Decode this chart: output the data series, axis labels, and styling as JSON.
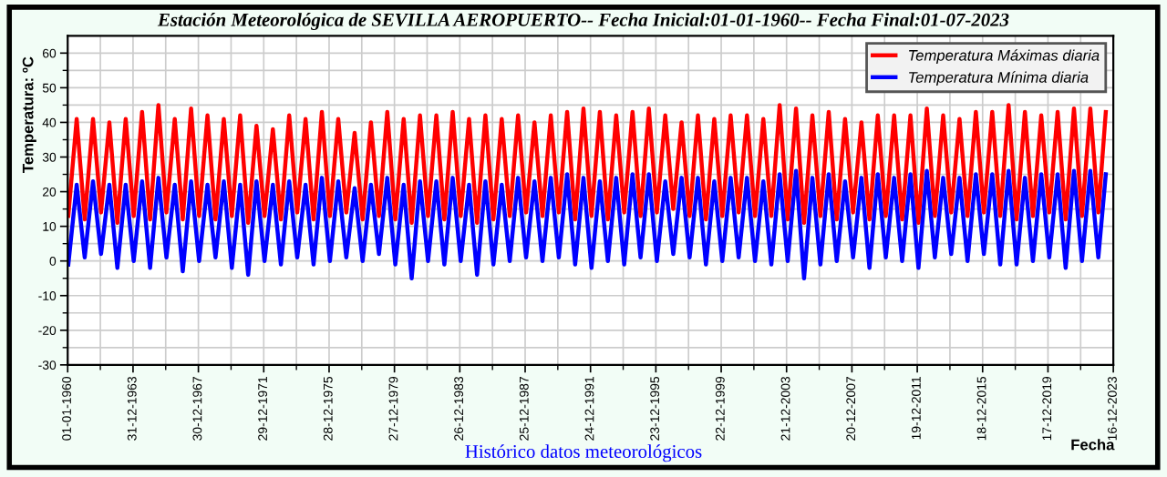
{
  "chart_data": {
    "type": "line",
    "title": "Estación Meteorológica de SEVILLA AEROPUERTO-- Fecha Inicial:01-01-1960-- Fecha Final:01-07-2023",
    "xlabel": "Fecha",
    "ylabel": "Temperatura: ºC",
    "annotations": [
      "Histórico datos meteorológicos"
    ],
    "x": [
      "1960-01-15",
      "1960-07-20",
      "1961-01-15",
      "1961-07-20",
      "1962-01-15",
      "1962-07-20",
      "1963-01-15",
      "1963-07-20",
      "1964-01-15",
      "1964-07-20",
      "1965-01-15",
      "1965-07-20",
      "1966-01-15",
      "1966-07-20",
      "1967-01-15",
      "1967-07-20",
      "1968-01-15",
      "1968-07-20",
      "1969-01-15",
      "1969-07-20",
      "1970-01-15",
      "1970-07-20",
      "1971-01-15",
      "1971-07-20",
      "1972-01-15",
      "1972-07-20",
      "1973-01-15",
      "1973-07-20",
      "1974-01-15",
      "1974-07-20",
      "1975-01-15",
      "1975-07-20",
      "1976-01-15",
      "1976-07-20",
      "1977-01-15",
      "1977-07-20",
      "1978-01-15",
      "1978-07-20",
      "1979-01-15",
      "1979-07-20",
      "1980-01-15",
      "1980-07-20",
      "1981-01-15",
      "1981-07-20",
      "1982-01-15",
      "1982-07-20",
      "1983-01-15",
      "1983-07-20",
      "1984-01-15",
      "1984-07-20",
      "1985-01-15",
      "1985-07-20",
      "1986-01-15",
      "1986-07-20",
      "1987-01-15",
      "1987-07-20",
      "1988-01-15",
      "1988-07-20",
      "1989-01-15",
      "1989-07-20",
      "1990-01-15",
      "1990-07-20",
      "1991-01-15",
      "1991-07-20",
      "1992-01-15",
      "1992-07-20",
      "1993-01-15",
      "1993-07-20",
      "1994-01-15",
      "1994-07-20",
      "1995-01-15",
      "1995-07-20",
      "1996-01-15",
      "1996-07-20",
      "1997-01-15",
      "1997-07-20",
      "1998-01-15",
      "1998-07-20",
      "1999-01-15",
      "1999-07-20",
      "2000-01-15",
      "2000-07-20",
      "2001-01-15",
      "2001-07-20",
      "2002-01-15",
      "2002-07-20",
      "2003-01-15",
      "2003-07-20",
      "2004-01-15",
      "2004-07-20",
      "2005-01-15",
      "2005-07-20",
      "2006-01-15",
      "2006-07-20",
      "2007-01-15",
      "2007-07-20",
      "2008-01-15",
      "2008-07-20",
      "2009-01-15",
      "2009-07-20",
      "2010-01-15",
      "2010-07-20",
      "2011-01-15",
      "2011-07-20",
      "2012-01-15",
      "2012-07-20",
      "2013-01-15",
      "2013-07-20",
      "2014-01-15",
      "2014-07-20",
      "2015-01-15",
      "2015-07-20",
      "2016-01-15",
      "2016-07-20",
      "2017-01-15",
      "2017-07-20",
      "2018-01-15",
      "2018-07-20",
      "2019-01-15",
      "2019-07-20",
      "2020-01-15",
      "2020-07-20",
      "2021-01-15",
      "2021-07-20",
      "2022-01-15",
      "2022-07-20",
      "2023-01-15",
      "2023-07-01"
    ],
    "series": [
      {
        "name": "Temperatura Máximas diaria",
        "color": "#ff0000",
        "values": [
          13,
          41,
          12,
          41,
          14,
          40,
          11,
          41,
          13,
          43,
          12,
          45,
          14,
          41,
          12,
          44,
          13,
          42,
          12,
          41,
          13,
          42,
          11,
          39,
          13,
          38,
          12,
          42,
          14,
          41,
          12,
          43,
          13,
          41,
          14,
          37,
          12,
          40,
          13,
          43,
          12,
          41,
          11,
          42,
          13,
          42,
          12,
          43,
          13,
          41,
          11,
          42,
          12,
          41,
          13,
          42,
          14,
          40,
          13,
          42,
          14,
          43,
          12,
          44,
          13,
          43,
          12,
          42,
          14,
          43,
          13,
          44,
          14,
          42,
          15,
          40,
          13,
          42,
          12,
          41,
          13,
          42,
          14,
          42,
          13,
          41,
          13,
          45,
          12,
          44,
          11,
          42,
          13,
          43,
          12,
          41,
          14,
          40,
          12,
          42,
          13,
          42,
          12,
          42,
          11,
          44,
          13,
          42,
          14,
          41,
          13,
          43,
          14,
          43,
          13,
          45,
          12,
          43,
          13,
          42,
          14,
          43,
          12,
          44,
          13,
          44,
          14,
          43
        ]
      },
      {
        "name": "Temperatura Mínima diaria",
        "color": "#0000ff",
        "values": [
          -1,
          22,
          1,
          23,
          2,
          22,
          -2,
          22,
          0,
          23,
          -2,
          24,
          1,
          22,
          -3,
          23,
          0,
          22,
          1,
          23,
          -2,
          22,
          -4,
          23,
          0,
          22,
          -1,
          23,
          1,
          22,
          -1,
          24,
          0,
          23,
          1,
          21,
          0,
          22,
          2,
          24,
          -1,
          22,
          -5,
          23,
          0,
          23,
          -1,
          24,
          0,
          22,
          -4,
          23,
          -1,
          22,
          0,
          24,
          1,
          23,
          0,
          24,
          1,
          25,
          -1,
          24,
          -2,
          23,
          0,
          24,
          -1,
          25,
          1,
          25,
          0,
          23,
          2,
          24,
          1,
          24,
          -1,
          23,
          0,
          24,
          1,
          24,
          0,
          23,
          -1,
          25,
          0,
          26,
          -5,
          24,
          -1,
          25,
          0,
          23,
          1,
          24,
          -2,
          25,
          1,
          24,
          0,
          25,
          -2,
          26,
          1,
          24,
          2,
          24,
          0,
          25,
          2,
          25,
          -1,
          26,
          -1,
          24,
          0,
          25,
          1,
          25,
          -2,
          26,
          0,
          26,
          1,
          25
        ]
      }
    ],
    "xlim": [
      "1960-01-01",
      "2023-12-16"
    ],
    "xticks": [
      {
        "value": "1960-01-01",
        "label": "01-01-1960"
      },
      {
        "value": "1963-12-31",
        "label": "31-12-1963"
      },
      {
        "value": "1967-12-30",
        "label": "30-12-1967"
      },
      {
        "value": "1971-12-29",
        "label": "29-12-1971"
      },
      {
        "value": "1975-12-28",
        "label": "28-12-1975"
      },
      {
        "value": "1979-12-27",
        "label": "27-12-1979"
      },
      {
        "value": "1983-12-26",
        "label": "26-12-1983"
      },
      {
        "value": "1987-12-25",
        "label": "25-12-1987"
      },
      {
        "value": "1991-12-24",
        "label": "24-12-1991"
      },
      {
        "value": "1995-12-23",
        "label": "23-12-1995"
      },
      {
        "value": "1999-12-22",
        "label": "22-12-1999"
      },
      {
        "value": "2003-12-21",
        "label": "21-12-2003"
      },
      {
        "value": "2007-12-20",
        "label": "20-12-2007"
      },
      {
        "value": "2011-12-19",
        "label": "19-12-2011"
      },
      {
        "value": "2015-12-18",
        "label": "18-12-2015"
      },
      {
        "value": "2019-12-17",
        "label": "17-12-2019"
      },
      {
        "value": "2023-12-16",
        "label": "16-12-2023"
      }
    ],
    "ylim": [
      -30,
      65
    ],
    "yticks": [
      -30,
      -20,
      -10,
      0,
      10,
      20,
      30,
      40,
      50,
      60
    ],
    "grid": true,
    "legend": "top right",
    "marker": "none",
    "line_style": "solid"
  }
}
